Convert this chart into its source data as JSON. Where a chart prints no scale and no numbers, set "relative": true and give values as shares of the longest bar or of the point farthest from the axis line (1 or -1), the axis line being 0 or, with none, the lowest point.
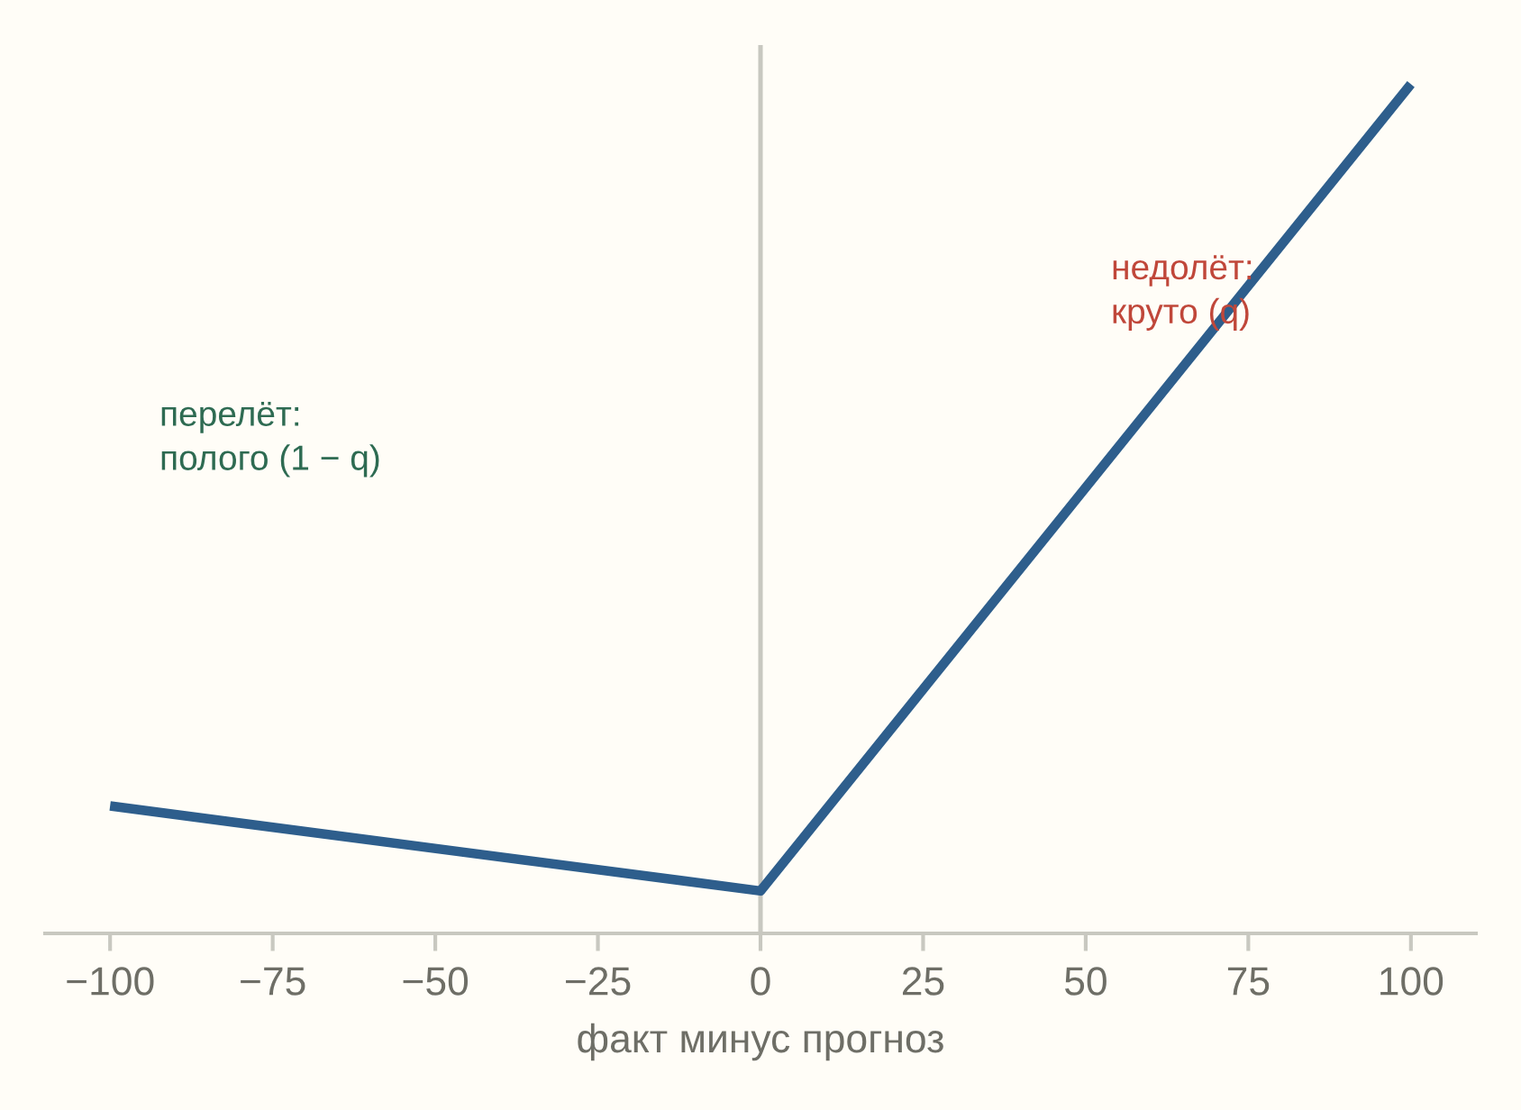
{
  "chart_data": {
    "type": "line",
    "x": [
      -100,
      0,
      100
    ],
    "values": [
      0.15,
      0.05,
      1
    ],
    "relative": true,
    "color": "#2e5e8c",
    "line_style": "solid",
    "xlim": [
      -110,
      110
    ],
    "xticks": [
      {
        "value": -100,
        "label": "−100"
      },
      {
        "value": -75,
        "label": "−75"
      },
      {
        "value": -50,
        "label": "−50"
      },
      {
        "value": -25,
        "label": "−25"
      },
      0,
      25,
      50,
      75,
      100
    ],
    "xlabel": "факт минус прогноз",
    "ref_lines": [
      {
        "axis": "x",
        "value": 0,
        "color": "#c8c8c0"
      }
    ],
    "annotations": [
      "перелёт:\nполого (1 − q)",
      "недолёт:\nкруто (q)"
    ],
    "tick_labels": "x"
  }
}
